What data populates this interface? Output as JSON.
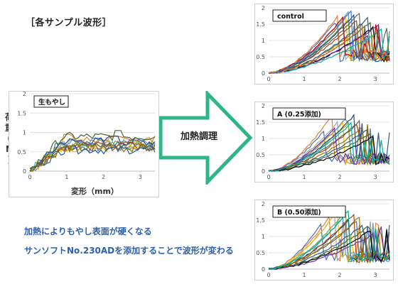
{
  "heading": "［各サンプル波形］",
  "process_label": "加熱調理",
  "notes": [
    "加熱によりもやし表面が硬くなる",
    "サンソフトNo.230ADを添加することで波形が変わる"
  ],
  "colors": {
    "arrow_stroke": "#2fb58a",
    "note_text": "#2f5fb0",
    "palette": [
      "#4472c4",
      "#ed7d31",
      "#a5a5a5",
      "#ffc000",
      "#5b9bd5",
      "#70ad47",
      "#264478",
      "#9e480e",
      "#636363",
      "#997300",
      "#255e91",
      "#43682b",
      "#000000",
      "#7030a0",
      "#00b0a0",
      "#c00000"
    ]
  },
  "chart_data": [
    {
      "type": "line",
      "panel_label": "生もやし",
      "ylabel": "荷重（N）",
      "xlabel": "変形（mm）",
      "xlim": [
        0,
        3.4
      ],
      "ylim": [
        0,
        2
      ],
      "xticks": [
        0,
        1,
        2,
        3
      ],
      "yticks": [
        0,
        0.5,
        1,
        1.5,
        2
      ],
      "ytick_labels": [
        "0",
        "0.5",
        "1",
        "1.5",
        "2"
      ],
      "grid": "horizontal",
      "peak_x": [
        0.8,
        1.0,
        1.2,
        1.5,
        1.8,
        2.0,
        2.3,
        2.6,
        2.8,
        3.0,
        1.1,
        2.4
      ],
      "peak_y": [
        0.72,
        0.95,
        0.8,
        0.7,
        0.85,
        0.8,
        0.9,
        0.75,
        0.8,
        0.7,
        0.65,
        1.05
      ],
      "behavior": "plateau"
    },
    {
      "type": "line",
      "panel_label": "control",
      "xlim": [
        0,
        3.4
      ],
      "ylim": [
        0,
        2
      ],
      "xticks": [
        0,
        1,
        2,
        3
      ],
      "yticks": [
        0,
        0.5,
        1,
        1.5,
        2
      ],
      "ytick_labels": [
        "0",
        "0.5",
        "1",
        "1.5",
        "2"
      ],
      "grid": "horizontal",
      "peak_x": [
        1.9,
        2.0,
        2.1,
        2.2,
        2.25,
        2.3,
        2.4,
        2.5,
        2.6,
        2.7,
        2.8,
        2.9,
        3.0,
        3.1,
        3.2,
        2.15,
        2.35,
        2.65
      ],
      "peak_y": [
        1.6,
        1.85,
        1.5,
        1.75,
        1.9,
        1.7,
        1.8,
        1.65,
        1.9,
        1.55,
        1.7,
        1.6,
        1.45,
        1.5,
        1.35,
        1.8,
        1.95,
        1.4
      ],
      "behavior": "plateau-high"
    },
    {
      "type": "line",
      "panel_label": "A (0.25添加)",
      "xlim": [
        0,
        3.4
      ],
      "ylim": [
        0,
        2
      ],
      "xticks": [
        0,
        1,
        2,
        3
      ],
      "yticks": [
        0,
        0.5,
        1,
        1.5,
        2
      ],
      "ytick_labels": [
        "0",
        "0.5",
        "1",
        "1.5",
        "2"
      ],
      "grid": "horizontal",
      "peak_x": [
        1.6,
        1.8,
        2.0,
        2.1,
        2.2,
        2.3,
        2.4,
        2.5,
        2.6,
        2.7,
        2.8,
        2.9,
        3.0,
        1.9,
        2.35
      ],
      "peak_y": [
        1.3,
        1.75,
        1.6,
        1.5,
        1.65,
        1.55,
        1.7,
        1.45,
        1.6,
        1.4,
        1.3,
        1.2,
        1.1,
        1.35,
        1.5
      ],
      "behavior": "drop"
    },
    {
      "type": "line",
      "panel_label": "B (0.50添加)",
      "xlim": [
        0,
        3.4
      ],
      "ylim": [
        0,
        2
      ],
      "xticks": [
        0,
        1,
        2,
        3
      ],
      "yticks": [
        0,
        0.5,
        1,
        1.5,
        2
      ],
      "ytick_labels": [
        "0",
        "0.5",
        "1",
        "1.5",
        "2"
      ],
      "grid": "horizontal",
      "peak_x": [
        1.5,
        1.7,
        1.9,
        2.0,
        2.1,
        2.2,
        2.3,
        2.4,
        2.5,
        2.6,
        2.7,
        2.8,
        2.9,
        3.0,
        2.25
      ],
      "peak_y": [
        1.4,
        1.6,
        1.75,
        1.9,
        1.6,
        1.85,
        1.55,
        1.7,
        1.5,
        1.65,
        1.4,
        1.3,
        1.2,
        1.1,
        1.8
      ],
      "behavior": "drop"
    }
  ]
}
